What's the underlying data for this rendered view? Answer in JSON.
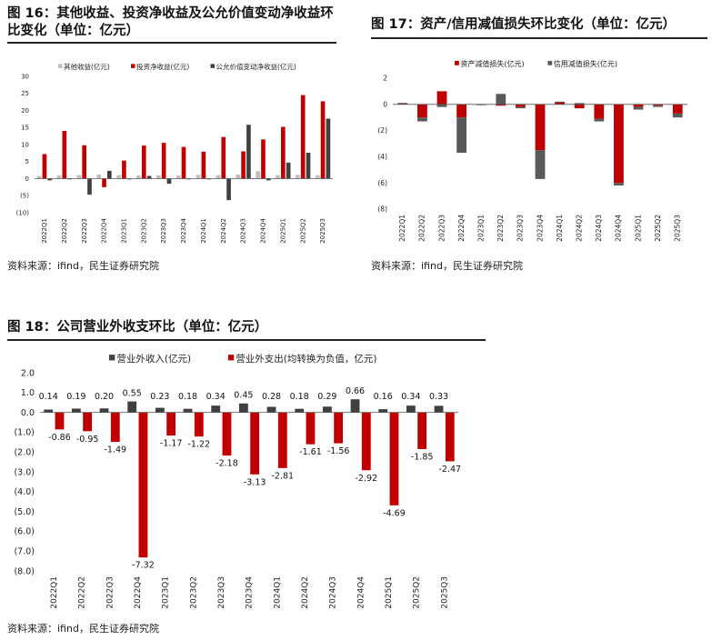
{
  "fig16": {
    "title_line1": "图 16：其他收益、投资净收益及公允价值变动净收益环",
    "title_line2": "比变化（单位：亿元）",
    "source": "资料来源：ifind，民生证券研究院"
  },
  "fig17": {
    "title": "图 17：资产/信用减值损失环比变化（单位：亿元）",
    "source": "资料来源：ifind，民生证券研究院"
  },
  "fig18": {
    "title": "图 18：公司营业外收支环比（单位：亿元）",
    "source": "资料来源：ifind，民生证券研究院"
  },
  "chart_data": [
    {
      "type": "bar",
      "categories": [
        "2022Q1",
        "2022Q2",
        "2022Q3",
        "2022Q4",
        "2023Q1",
        "2023Q2",
        "2023Q3",
        "2023Q4",
        "2024Q1",
        "2024Q2",
        "2024Q3",
        "2024Q4",
        "2025Q1",
        "2025Q2",
        "2025Q3"
      ],
      "series": [
        {
          "name": "其他收益(亿元)",
          "color": "#bfbfbf",
          "values": [
            0.8,
            0.9,
            1.0,
            1.2,
            1.0,
            0.9,
            1.0,
            0.9,
            1.1,
            1.0,
            1.2,
            2.2,
            1.0,
            1.1,
            1.0
          ]
        },
        {
          "name": "投资净收益(亿元)",
          "color": "#c00000",
          "values": [
            7.2,
            14.0,
            9.8,
            -2.5,
            5.3,
            9.7,
            10.5,
            9.3,
            7.9,
            12.2,
            8.0,
            11.5,
            15.2,
            24.5,
            22.7
          ]
        },
        {
          "name": "公允价值变动净收益(亿元)",
          "color": "#404040",
          "values": [
            -0.5,
            0.0,
            -4.7,
            2.3,
            0.0,
            0.8,
            -1.5,
            -0.2,
            0.0,
            -6.3,
            15.8,
            -0.5,
            4.7,
            7.6,
            17.6
          ]
        }
      ],
      "ylim": [
        -10,
        30
      ],
      "yticks": [
        "(10)",
        "(5)",
        "0",
        "5",
        "10",
        "15",
        "20",
        "25",
        "30"
      ],
      "legend": "top"
    },
    {
      "type": "bar",
      "stacked": true,
      "categories": [
        "2022Q1",
        "2022Q2",
        "2022Q3",
        "2022Q4",
        "2023Q1",
        "2023Q2",
        "2023Q3",
        "2023Q4",
        "2024Q1",
        "2024Q2",
        "2024Q3",
        "2024Q4",
        "2025Q1",
        "2025Q2",
        "2025Q3"
      ],
      "series": [
        {
          "name": "资产减值损失(亿元)",
          "color": "#c00000",
          "values": [
            0.1,
            -1.0,
            1.0,
            -1.0,
            0.0,
            -0.1,
            -0.2,
            -3.5,
            0.2,
            -0.3,
            -1.1,
            -6.0,
            -0.2,
            -0.1,
            -0.7
          ]
        },
        {
          "name": "信用减值损失(亿元)",
          "color": "#595959",
          "values": [
            0.0,
            -0.3,
            -0.2,
            -2.7,
            0.0,
            0.8,
            -0.1,
            -2.2,
            0.0,
            0.1,
            -0.2,
            -0.2,
            -0.2,
            -0.1,
            -0.3
          ]
        }
      ],
      "ylim": [
        -8,
        2
      ],
      "yticks": [
        "(8)",
        "(6)",
        "(4)",
        "(2)",
        "0",
        "2"
      ],
      "legend": "top"
    },
    {
      "type": "bar",
      "categories": [
        "2022Q1",
        "2022Q2",
        "2022Q3",
        "2022Q4",
        "2023Q1",
        "2023Q2",
        "2023Q3",
        "2023Q4",
        "2024Q1",
        "2024Q2",
        "2024Q3",
        "2024Q4",
        "2025Q1",
        "2025Q2",
        "2025Q3"
      ],
      "series": [
        {
          "name": "营业外收入(亿元)",
          "color": "#404040",
          "values": [
            0.14,
            0.19,
            0.2,
            0.55,
            0.23,
            0.18,
            0.34,
            0.45,
            0.28,
            0.18,
            0.29,
            0.66,
            0.16,
            0.34,
            0.33
          ],
          "labels": [
            "0.14",
            "0.19",
            "0.20",
            "0.55",
            "0.23",
            "0.18",
            "0.34",
            "0.45",
            "0.28",
            "0.18",
            "0.29",
            "0.66",
            "0.16",
            "0.34",
            "0.33"
          ]
        },
        {
          "name": "营业外支出(均转换为负值，亿元)",
          "color": "#c00000",
          "values": [
            -0.86,
            -0.95,
            -1.49,
            -7.32,
            -1.17,
            -1.22,
            -2.18,
            -3.13,
            -2.81,
            -1.61,
            -1.56,
            -2.92,
            -4.69,
            -1.85,
            -2.47
          ],
          "labels": [
            "-0.86",
            "-0.95",
            "-1.49",
            "-7.32",
            "-1.17",
            "-1.22",
            "-2.18",
            "-3.13",
            "-2.81",
            "-1.61",
            "-1.56",
            "-2.92",
            "-4.69",
            "-1.85",
            "-2.47"
          ]
        }
      ],
      "ylim": [
        -8,
        2
      ],
      "yticks": [
        "(8.0)",
        "(7.0)",
        "(6.0)",
        "(5.0)",
        "(4.0)",
        "(3.0)",
        "(2.0)",
        "(1.0)",
        "0.0",
        "1.0",
        "2.0"
      ],
      "legend": "top"
    }
  ]
}
